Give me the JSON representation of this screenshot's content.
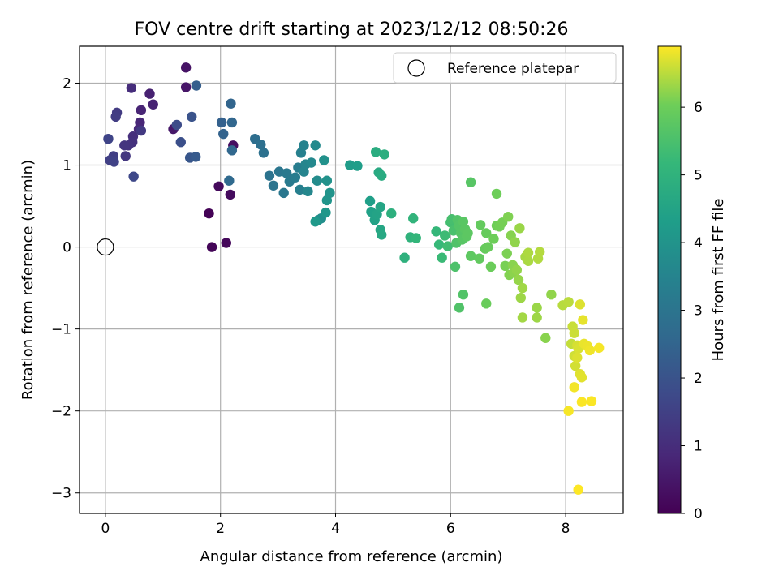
{
  "chart_data": {
    "type": "scatter",
    "title": "FOV centre drift starting at 2023/12/12 08:50:26",
    "xlabel": "Angular distance from reference (arcmin)",
    "ylabel": "Rotation from reference (arcmin)",
    "xlim": [
      -0.45,
      9.0
    ],
    "ylim": [
      -3.25,
      2.45
    ],
    "xticks": [
      0,
      2,
      4,
      6,
      8
    ],
    "yticks": [
      -3,
      -2,
      -1,
      0,
      1,
      2
    ],
    "xtick_labels": [
      "0",
      "2",
      "4",
      "6",
      "8"
    ],
    "ytick_labels": [
      "−3",
      "−2",
      "−1",
      "0",
      "1",
      "2"
    ],
    "grid": true,
    "legend": {
      "position": "top-right",
      "label": "Reference platepar",
      "marker": "hollow-circle"
    },
    "reference_point": {
      "x": 0,
      "y": 0
    },
    "colorbar": {
      "label": "Hours from first FF file",
      "colormap": "viridis",
      "range": [
        0,
        6.9
      ],
      "ticks": [
        0,
        1,
        2,
        3,
        4,
        5,
        6
      ],
      "tick_labels": [
        "0",
        "1",
        "2",
        "3",
        "4",
        "5",
        "6"
      ]
    },
    "points": [
      {
        "x": 1.8,
        "y": 0.41,
        "c": 0.05
      },
      {
        "x": 1.85,
        "y": 0.0,
        "c": 0.1
      },
      {
        "x": 2.1,
        "y": 0.05,
        "c": 0.15
      },
      {
        "x": 1.97,
        "y": 0.74,
        "c": 0.2
      },
      {
        "x": 2.17,
        "y": 0.64,
        "c": 0.25
      },
      {
        "x": 2.22,
        "y": 1.24,
        "c": 0.3
      },
      {
        "x": 1.4,
        "y": 2.19,
        "c": 0.4
      },
      {
        "x": 1.4,
        "y": 1.95,
        "c": 0.45
      },
      {
        "x": 1.18,
        "y": 1.44,
        "c": 0.5
      },
      {
        "x": 0.77,
        "y": 1.87,
        "c": 0.7
      },
      {
        "x": 0.83,
        "y": 1.74,
        "c": 0.75
      },
      {
        "x": 0.62,
        "y": 1.67,
        "c": 0.8
      },
      {
        "x": 0.6,
        "y": 1.52,
        "c": 0.85
      },
      {
        "x": 0.58,
        "y": 1.44,
        "c": 0.9
      },
      {
        "x": 0.45,
        "y": 1.94,
        "c": 1.0
      },
      {
        "x": 0.48,
        "y": 1.35,
        "c": 1.05
      },
      {
        "x": 0.47,
        "y": 1.28,
        "c": 1.1
      },
      {
        "x": 0.4,
        "y": 1.24,
        "c": 1.15
      },
      {
        "x": 0.33,
        "y": 1.24,
        "c": 1.2
      },
      {
        "x": 0.35,
        "y": 1.11,
        "c": 1.25
      },
      {
        "x": 0.62,
        "y": 1.42,
        "c": 1.3
      },
      {
        "x": 0.2,
        "y": 1.64,
        "c": 1.35
      },
      {
        "x": 0.18,
        "y": 1.59,
        "c": 1.4
      },
      {
        "x": 0.14,
        "y": 1.11,
        "c": 1.45
      },
      {
        "x": 0.08,
        "y": 1.06,
        "c": 1.5
      },
      {
        "x": 0.15,
        "y": 1.04,
        "c": 1.55
      },
      {
        "x": 0.05,
        "y": 1.32,
        "c": 1.6
      },
      {
        "x": 0.49,
        "y": 0.86,
        "c": 1.7
      },
      {
        "x": 1.24,
        "y": 1.49,
        "c": 1.8
      },
      {
        "x": 1.31,
        "y": 1.28,
        "c": 1.9
      },
      {
        "x": 1.5,
        "y": 1.59,
        "c": 2.0
      },
      {
        "x": 1.47,
        "y": 1.09,
        "c": 2.1
      },
      {
        "x": 1.57,
        "y": 1.1,
        "c": 2.2
      },
      {
        "x": 1.58,
        "y": 1.97,
        "c": 2.3
      },
      {
        "x": 2.02,
        "y": 1.52,
        "c": 2.4
      },
      {
        "x": 2.05,
        "y": 1.38,
        "c": 2.45
      },
      {
        "x": 2.18,
        "y": 1.75,
        "c": 2.5
      },
      {
        "x": 2.2,
        "y": 1.52,
        "c": 2.55
      },
      {
        "x": 2.2,
        "y": 1.18,
        "c": 2.6
      },
      {
        "x": 2.15,
        "y": 0.81,
        "c": 2.65
      },
      {
        "x": 2.6,
        "y": 1.32,
        "c": 2.8
      },
      {
        "x": 2.7,
        "y": 1.25,
        "c": 2.85
      },
      {
        "x": 2.75,
        "y": 1.15,
        "c": 2.9
      },
      {
        "x": 2.85,
        "y": 0.87,
        "c": 2.95
      },
      {
        "x": 2.92,
        "y": 0.75,
        "c": 3.0
      },
      {
        "x": 3.02,
        "y": 0.92,
        "c": 3.05
      },
      {
        "x": 3.1,
        "y": 0.66,
        "c": 3.1
      },
      {
        "x": 3.15,
        "y": 0.9,
        "c": 3.15
      },
      {
        "x": 3.2,
        "y": 0.8,
        "c": 3.2
      },
      {
        "x": 3.3,
        "y": 0.85,
        "c": 3.25
      },
      {
        "x": 3.35,
        "y": 0.97,
        "c": 3.3
      },
      {
        "x": 3.38,
        "y": 0.7,
        "c": 3.35
      },
      {
        "x": 3.4,
        "y": 1.15,
        "c": 3.4
      },
      {
        "x": 3.45,
        "y": 1.24,
        "c": 3.45
      },
      {
        "x": 3.45,
        "y": 0.92,
        "c": 3.5
      },
      {
        "x": 3.48,
        "y": 1.01,
        "c": 3.55
      },
      {
        "x": 3.52,
        "y": 0.68,
        "c": 3.6
      },
      {
        "x": 3.58,
        "y": 1.03,
        "c": 3.65
      },
      {
        "x": 3.65,
        "y": 1.24,
        "c": 3.7
      },
      {
        "x": 3.68,
        "y": 0.81,
        "c": 3.75
      },
      {
        "x": 3.7,
        "y": 0.33,
        "c": 3.8
      },
      {
        "x": 3.75,
        "y": 0.35,
        "c": 3.85
      },
      {
        "x": 3.8,
        "y": 1.06,
        "c": 3.9
      },
      {
        "x": 3.85,
        "y": 0.81,
        "c": 3.95
      },
      {
        "x": 3.9,
        "y": 0.66,
        "c": 4.0
      },
      {
        "x": 3.85,
        "y": 0.57,
        "c": 4.05
      },
      {
        "x": 3.83,
        "y": 0.42,
        "c": 4.1
      },
      {
        "x": 3.65,
        "y": 0.31,
        "c": 4.15
      },
      {
        "x": 4.25,
        "y": 1.0,
        "c": 4.25
      },
      {
        "x": 4.38,
        "y": 0.99,
        "c": 4.3
      },
      {
        "x": 4.6,
        "y": 0.56,
        "c": 4.35
      },
      {
        "x": 4.62,
        "y": 0.43,
        "c": 4.4
      },
      {
        "x": 4.68,
        "y": 0.33,
        "c": 4.45
      },
      {
        "x": 4.72,
        "y": 0.4,
        "c": 4.5
      },
      {
        "x": 4.78,
        "y": 0.49,
        "c": 4.55
      },
      {
        "x": 4.78,
        "y": 0.21,
        "c": 4.6
      },
      {
        "x": 4.8,
        "y": 0.15,
        "c": 4.65
      },
      {
        "x": 4.75,
        "y": 0.91,
        "c": 4.7
      },
      {
        "x": 4.8,
        "y": 0.87,
        "c": 4.75
      },
      {
        "x": 4.7,
        "y": 1.16,
        "c": 4.8
      },
      {
        "x": 4.85,
        "y": 1.13,
        "c": 4.85
      },
      {
        "x": 4.97,
        "y": 0.41,
        "c": 4.9
      },
      {
        "x": 5.2,
        "y": -0.13,
        "c": 4.95
      },
      {
        "x": 5.3,
        "y": 0.12,
        "c": 5.0
      },
      {
        "x": 5.35,
        "y": 0.35,
        "c": 5.05
      },
      {
        "x": 5.4,
        "y": 0.11,
        "c": 5.1
      },
      {
        "x": 5.75,
        "y": 0.19,
        "c": 5.15
      },
      {
        "x": 5.8,
        "y": 0.03,
        "c": 5.2
      },
      {
        "x": 5.85,
        "y": -0.13,
        "c": 5.25
      },
      {
        "x": 5.9,
        "y": 0.14,
        "c": 5.3
      },
      {
        "x": 5.95,
        "y": 0.01,
        "c": 5.35
      },
      {
        "x": 6.0,
        "y": 0.3,
        "c": 5.4
      },
      {
        "x": 6.02,
        "y": 0.34,
        "c": 5.45
      },
      {
        "x": 6.05,
        "y": 0.2,
        "c": 5.5
      },
      {
        "x": 6.08,
        "y": -0.24,
        "c": 5.55
      },
      {
        "x": 6.1,
        "y": 0.05,
        "c": 5.6
      },
      {
        "x": 6.12,
        "y": 0.33,
        "c": 5.62
      },
      {
        "x": 6.15,
        "y": 0.26,
        "c": 5.65
      },
      {
        "x": 6.18,
        "y": 0.17,
        "c": 5.68
      },
      {
        "x": 6.2,
        "y": 0.09,
        "c": 5.7
      },
      {
        "x": 6.22,
        "y": 0.31,
        "c": 5.72
      },
      {
        "x": 6.25,
        "y": 0.22,
        "c": 5.74
      },
      {
        "x": 6.28,
        "y": 0.13,
        "c": 5.76
      },
      {
        "x": 6.3,
        "y": 0.17,
        "c": 5.78
      },
      {
        "x": 6.15,
        "y": -0.74,
        "c": 5.6
      },
      {
        "x": 6.22,
        "y": -0.58,
        "c": 5.62
      },
      {
        "x": 6.35,
        "y": 0.79,
        "c": 5.7
      },
      {
        "x": 6.35,
        "y": -0.11,
        "c": 5.8
      },
      {
        "x": 6.5,
        "y": -0.14,
        "c": 5.85
      },
      {
        "x": 6.52,
        "y": 0.27,
        "c": 5.88
      },
      {
        "x": 6.6,
        "y": -0.02,
        "c": 5.9
      },
      {
        "x": 6.62,
        "y": 0.17,
        "c": 5.92
      },
      {
        "x": 6.65,
        "y": 0.0,
        "c": 5.94
      },
      {
        "x": 6.62,
        "y": -0.69,
        "c": 5.96
      },
      {
        "x": 6.7,
        "y": -0.24,
        "c": 5.98
      },
      {
        "x": 6.75,
        "y": 0.1,
        "c": 6.0
      },
      {
        "x": 6.8,
        "y": 0.65,
        "c": 6.02
      },
      {
        "x": 6.8,
        "y": 0.26,
        "c": 6.04
      },
      {
        "x": 6.85,
        "y": 0.25,
        "c": 6.06
      },
      {
        "x": 6.9,
        "y": 0.3,
        "c": 6.08
      },
      {
        "x": 6.95,
        "y": -0.23,
        "c": 6.1
      },
      {
        "x": 6.98,
        "y": -0.08,
        "c": 6.12
      },
      {
        "x": 7.0,
        "y": 0.37,
        "c": 6.14
      },
      {
        "x": 7.02,
        "y": -0.34,
        "c": 6.16
      },
      {
        "x": 7.05,
        "y": 0.14,
        "c": 6.18
      },
      {
        "x": 7.08,
        "y": -0.22,
        "c": 6.2
      },
      {
        "x": 7.1,
        "y": -0.31,
        "c": 6.22
      },
      {
        "x": 7.12,
        "y": 0.06,
        "c": 6.24
      },
      {
        "x": 7.15,
        "y": -0.28,
        "c": 6.26
      },
      {
        "x": 7.18,
        "y": -0.4,
        "c": 6.28
      },
      {
        "x": 7.2,
        "y": 0.23,
        "c": 6.3
      },
      {
        "x": 7.22,
        "y": -0.62,
        "c": 6.32
      },
      {
        "x": 7.25,
        "y": -0.5,
        "c": 6.34
      },
      {
        "x": 7.25,
        "y": -0.86,
        "c": 6.36
      },
      {
        "x": 7.3,
        "y": -0.12,
        "c": 6.38
      },
      {
        "x": 7.35,
        "y": -0.17,
        "c": 6.4
      },
      {
        "x": 7.35,
        "y": -0.07,
        "c": 6.42
      },
      {
        "x": 7.5,
        "y": -0.74,
        "c": 6.3
      },
      {
        "x": 7.5,
        "y": -0.86,
        "c": 6.32
      },
      {
        "x": 7.52,
        "y": -0.14,
        "c": 6.44
      },
      {
        "x": 7.55,
        "y": -0.06,
        "c": 6.46
      },
      {
        "x": 7.65,
        "y": -1.11,
        "c": 6.2
      },
      {
        "x": 7.75,
        "y": -0.58,
        "c": 6.25
      },
      {
        "x": 7.95,
        "y": -0.71,
        "c": 6.48
      },
      {
        "x": 8.05,
        "y": -0.67,
        "c": 6.5
      },
      {
        "x": 8.1,
        "y": -1.18,
        "c": 6.55
      },
      {
        "x": 8.12,
        "y": -0.97,
        "c": 6.58
      },
      {
        "x": 8.15,
        "y": -1.05,
        "c": 6.6
      },
      {
        "x": 8.15,
        "y": -1.33,
        "c": 6.62
      },
      {
        "x": 8.17,
        "y": -1.45,
        "c": 6.64
      },
      {
        "x": 8.2,
        "y": -1.2,
        "c": 6.66
      },
      {
        "x": 8.22,
        "y": -1.24,
        "c": 6.68
      },
      {
        "x": 8.25,
        "y": -0.7,
        "c": 6.7
      },
      {
        "x": 8.25,
        "y": -1.55,
        "c": 6.72
      },
      {
        "x": 8.28,
        "y": -1.59,
        "c": 6.74
      },
      {
        "x": 8.3,
        "y": -0.89,
        "c": 6.76
      },
      {
        "x": 8.32,
        "y": -1.18,
        "c": 6.78
      },
      {
        "x": 8.38,
        "y": -1.21,
        "c": 6.8
      },
      {
        "x": 8.42,
        "y": -1.26,
        "c": 6.82
      },
      {
        "x": 8.15,
        "y": -1.71,
        "c": 6.84
      },
      {
        "x": 8.05,
        "y": -2.0,
        "c": 6.86
      },
      {
        "x": 8.28,
        "y": -1.89,
        "c": 6.88
      },
      {
        "x": 8.45,
        "y": -1.88,
        "c": 6.88
      },
      {
        "x": 8.58,
        "y": -1.23,
        "c": 6.85
      },
      {
        "x": 8.22,
        "y": -2.96,
        "c": 6.9
      },
      {
        "x": 8.2,
        "y": -1.35,
        "c": 6.7
      }
    ]
  }
}
